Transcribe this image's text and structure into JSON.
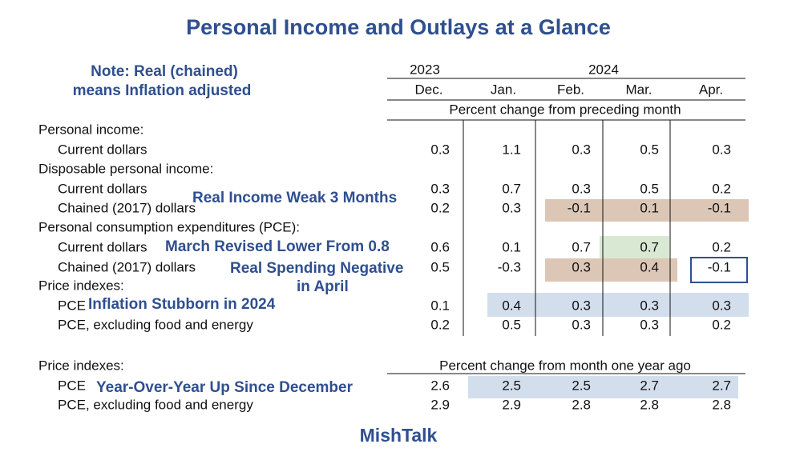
{
  "title": "Personal Income and Outlays at a Glance",
  "note": [
    "Note: Real (chained)",
    "means Inflation adjusted"
  ],
  "header": {
    "years": [
      "2023",
      "2024"
    ],
    "months": [
      "Dec.",
      "Jan.",
      "Feb.",
      "Mar.",
      "Apr."
    ],
    "monthly_subtitle": "Percent change from preceding month",
    "yoy_subtitle": "Percent change from month one year ago"
  },
  "sections": [
    {
      "title": "Personal income:",
      "rows": [
        {
          "label": "Current dollars",
          "values": [
            0.3,
            1.1,
            0.3,
            0.5,
            0.3
          ]
        }
      ]
    },
    {
      "title": "Disposable personal income:",
      "rows": [
        {
          "label": "Current dollars",
          "values": [
            0.3,
            0.7,
            0.3,
            0.5,
            0.2
          ]
        },
        {
          "label": "Chained (2017) dollars",
          "values": [
            0.2,
            0.3,
            -0.1,
            0.1,
            -0.1
          ]
        }
      ]
    },
    {
      "title": "Personal consumption expenditures (PCE):",
      "rows": [
        {
          "label": "Current dollars",
          "values": [
            0.6,
            0.1,
            0.7,
            0.7,
            0.2
          ]
        },
        {
          "label": "Chained (2017) dollars",
          "values": [
            0.5,
            -0.3,
            0.3,
            0.4,
            -0.1
          ]
        }
      ]
    },
    {
      "title": "Price indexes:",
      "rows": [
        {
          "label": "PCE",
          "values": [
            0.1,
            0.4,
            0.3,
            0.3,
            0.3
          ]
        },
        {
          "label": "PCE, excluding food and energy",
          "values": [
            0.2,
            0.5,
            0.3,
            0.3,
            0.2
          ]
        }
      ]
    },
    {
      "title": "Price indexes:",
      "rows": [
        {
          "label": "PCE",
          "values": [
            2.6,
            2.5,
            2.5,
            2.7,
            2.7
          ]
        },
        {
          "label": "PCE, excluding food and energy",
          "values": [
            2.9,
            2.9,
            2.8,
            2.8,
            2.8
          ]
        }
      ]
    }
  ],
  "annotations": [
    "Real Income Weak 3 Months",
    "March Revised Lower From 0.8",
    "Real Spending Negative",
    "in April",
    "Inflation Stubborn in 2024",
    "Year-Over-Year Up Since December"
  ],
  "footer": "MishTalk"
}
